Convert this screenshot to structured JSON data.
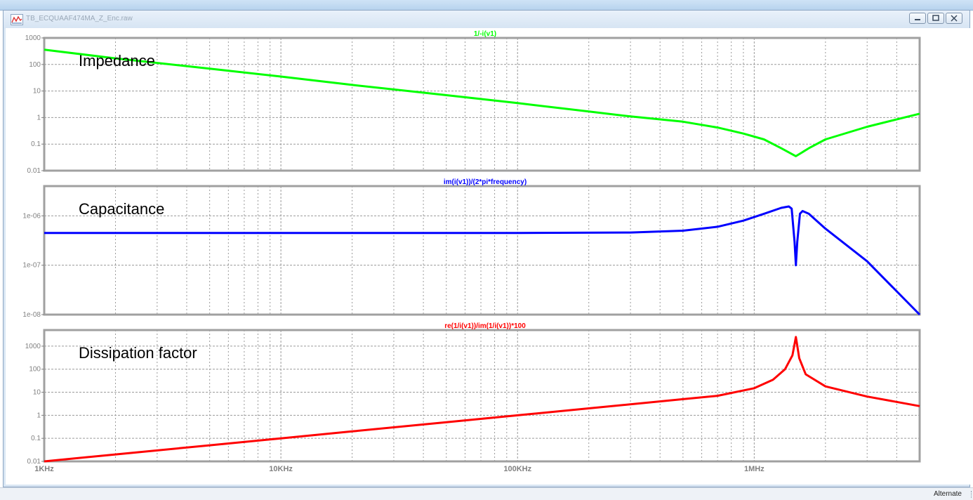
{
  "window": {
    "title": "TB_ECQUAAF474MA_Z_Enc.raw",
    "icon": "waveform-icon",
    "buttons": [
      "minimize-icon",
      "restore-icon",
      "close-icon"
    ]
  },
  "status": {
    "mode": "Alternate"
  },
  "chart_data": [
    {
      "type": "line",
      "title": "1/-i(v1)",
      "annotation": "Impedance",
      "color": "#00ff00",
      "log_x": true,
      "log_y": true,
      "xlim": [
        1000,
        5000000
      ],
      "ylim": [
        0.01,
        1000
      ],
      "yticks": [
        {
          "v": 1000,
          "label": "1000"
        },
        {
          "v": 100,
          "label": "100"
        },
        {
          "v": 10,
          "label": "10"
        },
        {
          "v": 1,
          "label": "1"
        },
        {
          "v": 0.1,
          "label": "0.1"
        },
        {
          "v": 0.01,
          "label": "0.01"
        }
      ],
      "grid": true,
      "series": [
        {
          "x": [
            1000,
            2000,
            5000,
            10000,
            20000,
            50000,
            100000,
            200000,
            300000,
            500000,
            700000,
            900000,
            1100000,
            1300000,
            1500000,
            1700000,
            2000000,
            3000000,
            5000000
          ],
          "y": [
            360,
            170,
            70,
            35,
            17,
            7,
            3.5,
            1.7,
            1.1,
            0.7,
            0.42,
            0.25,
            0.15,
            0.07,
            0.035,
            0.07,
            0.15,
            0.45,
            1.4
          ]
        }
      ]
    },
    {
      "type": "line",
      "title": "im(i(v1))/(2*pi*frequency)",
      "annotation": "Capacitance",
      "color": "#0000ff",
      "log_x": true,
      "log_y": true,
      "xlim": [
        1000,
        5000000
      ],
      "ylim": [
        1e-08,
        4e-06
      ],
      "yticks": [
        {
          "v": 1e-06,
          "label": "1e-06"
        },
        {
          "v": 1e-07,
          "label": "1e-07"
        },
        {
          "v": 1e-08,
          "label": "1e-08"
        }
      ],
      "grid": true,
      "series": [
        {
          "x": [
            1000,
            10000,
            100000,
            300000,
            500000,
            700000,
            900000,
            1100000,
            1300000,
            1400000,
            1440000,
            1480000,
            1500000,
            1520000,
            1560000,
            1600000,
            1700000,
            2000000,
            3000000,
            5000000
          ],
          "y": [
            4.5e-07,
            4.5e-07,
            4.5e-07,
            4.6e-07,
            5e-07,
            6e-07,
            8e-07,
            1.1e-06,
            1.45e-06,
            1.55e-06,
            1.4e-06,
            3e-07,
            1e-07,
            3e-07,
            1.1e-06,
            1.25e-06,
            1.1e-06,
            5.5e-07,
            1.2e-07,
            1e-08
          ]
        }
      ]
    },
    {
      "type": "line",
      "title": "re(1/i(v1))/im(1/i(v1))*100",
      "annotation": "Dissipation factor",
      "color": "#ff0000",
      "log_x": true,
      "log_y": true,
      "xlim": [
        1000,
        5000000
      ],
      "ylim": [
        0.01,
        5000
      ],
      "yticks": [
        {
          "v": 1000,
          "label": "1000"
        },
        {
          "v": 100,
          "label": "100"
        },
        {
          "v": 10,
          "label": "10"
        },
        {
          "v": 1,
          "label": "1"
        },
        {
          "v": 0.1,
          "label": "0.1"
        },
        {
          "v": 0.01,
          "label": "0.01"
        }
      ],
      "xticks": [
        {
          "v": 1000,
          "label": "1KHz"
        },
        {
          "v": 10000,
          "label": "10KHz"
        },
        {
          "v": 100000,
          "label": "100KHz"
        },
        {
          "v": 1000000,
          "label": "1MHz"
        }
      ],
      "grid": true,
      "series": [
        {
          "x": [
            1000,
            2000,
            5000,
            10000,
            20000,
            50000,
            100000,
            200000,
            500000,
            700000,
            1000000,
            1200000,
            1350000,
            1450000,
            1500000,
            1550000,
            1650000,
            2000000,
            3000000,
            5000000
          ],
          "y": [
            0.01,
            0.02,
            0.05,
            0.1,
            0.2,
            0.5,
            1,
            2,
            5,
            7,
            15,
            35,
            100,
            400,
            2500,
            300,
            60,
            18,
            6.5,
            2.5
          ]
        }
      ]
    }
  ]
}
